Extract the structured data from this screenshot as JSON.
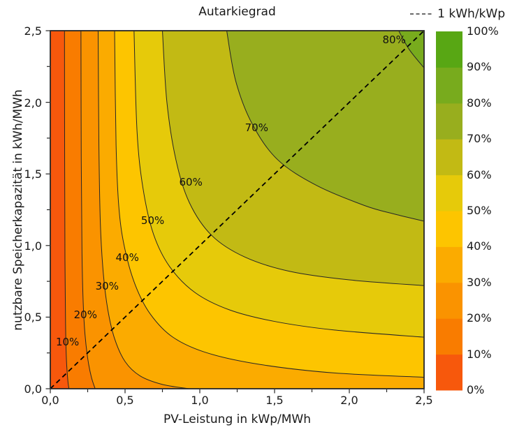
{
  "chart_data": {
    "type": "contour",
    "title": "Autarkiegrad",
    "xlabel": "PV-Leistung in kWp/MWh",
    "ylabel": "nutzbare Speicherkapazität in kWh/MWh",
    "xlim": [
      0,
      2.5
    ],
    "ylim": [
      0,
      2.5
    ],
    "grid": false,
    "xticks": {
      "values": [
        0,
        0.5,
        1.0,
        1.5,
        2.0,
        2.5
      ],
      "labels": [
        "0,0",
        "0,5",
        "1,0",
        "1,5",
        "2,0",
        "2,5"
      ],
      "minor_step": 0.25
    },
    "yticks": {
      "values": [
        0,
        0.5,
        1.0,
        1.5,
        2.0,
        2.5
      ],
      "labels": [
        "0,0",
        "0,5",
        "1,0",
        "1,5",
        "2,0",
        "2,5"
      ],
      "minor_step": 0.25
    },
    "reference_line": {
      "label": "1 kWh/kWp",
      "style": "dashed",
      "color": "#000000",
      "points": [
        [
          0,
          0
        ],
        [
          2.5,
          2.5
        ]
      ]
    },
    "band_colors": [
      {
        "range": [
          0,
          10
        ],
        "color": "#f7580c"
      },
      {
        "range": [
          10,
          20
        ],
        "color": "#f97c00"
      },
      {
        "range": [
          20,
          30
        ],
        "color": "#fa9300"
      },
      {
        "range": [
          30,
          40
        ],
        "color": "#fbab00"
      },
      {
        "range": [
          40,
          50
        ],
        "color": "#fdc500"
      },
      {
        "range": [
          50,
          60
        ],
        "color": "#e6ca0a"
      },
      {
        "range": [
          60,
          70
        ],
        "color": "#c2ba14"
      },
      {
        "range": [
          70,
          80
        ],
        "color": "#98ae1e"
      },
      {
        "range": [
          80,
          90
        ],
        "color": "#78ab1d"
      },
      {
        "range": [
          90,
          100
        ],
        "color": "#58a714"
      }
    ],
    "contours": [
      {
        "level": 10,
        "label": "10%",
        "label_pos": [
          0.115,
          0.32
        ],
        "points": [
          [
            0.095,
            2.5
          ],
          [
            0.096,
            1.6
          ],
          [
            0.098,
            0.9
          ],
          [
            0.102,
            0.45
          ],
          [
            0.108,
            0.2
          ],
          [
            0.118,
            0.05
          ],
          [
            0.125,
            0
          ]
        ]
      },
      {
        "level": 20,
        "label": "20%",
        "label_pos": [
          0.235,
          0.51
        ],
        "points": [
          [
            0.205,
            2.5
          ],
          [
            0.207,
            1.6
          ],
          [
            0.212,
            0.95
          ],
          [
            0.22,
            0.6
          ],
          [
            0.232,
            0.38
          ],
          [
            0.252,
            0.2
          ],
          [
            0.275,
            0.08
          ],
          [
            0.3,
            0
          ]
        ]
      },
      {
        "level": 30,
        "label": "30%",
        "label_pos": [
          0.38,
          0.71
        ],
        "points": [
          [
            0.32,
            2.5
          ],
          [
            0.325,
            1.7
          ],
          [
            0.335,
            1.15
          ],
          [
            0.355,
            0.8
          ],
          [
            0.385,
            0.55
          ],
          [
            0.43,
            0.35
          ],
          [
            0.5,
            0.19
          ],
          [
            0.6,
            0.09
          ],
          [
            0.75,
            0.03
          ],
          [
            0.93,
            0
          ]
        ]
      },
      {
        "level": 40,
        "label": "40%",
        "label_pos": [
          0.515,
          0.91
        ],
        "points": [
          [
            0.43,
            2.5
          ],
          [
            0.44,
            1.7
          ],
          [
            0.46,
            1.25
          ],
          [
            0.5,
            0.97
          ],
          [
            0.57,
            0.72
          ],
          [
            0.67,
            0.52
          ],
          [
            0.82,
            0.36
          ],
          [
            1.05,
            0.25
          ],
          [
            1.4,
            0.17
          ],
          [
            1.9,
            0.11
          ],
          [
            2.5,
            0.08
          ]
        ]
      },
      {
        "level": 50,
        "label": "50%",
        "label_pos": [
          0.685,
          1.17
        ],
        "points": [
          [
            0.56,
            2.5
          ],
          [
            0.58,
            1.8
          ],
          [
            0.62,
            1.4
          ],
          [
            0.69,
            1.08
          ],
          [
            0.8,
            0.85
          ],
          [
            0.97,
            0.67
          ],
          [
            1.2,
            0.55
          ],
          [
            1.5,
            0.47
          ],
          [
            1.9,
            0.41
          ],
          [
            2.5,
            0.36
          ]
        ]
      },
      {
        "level": 60,
        "label": "60%",
        "label_pos": [
          0.94,
          1.44
        ],
        "points": [
          [
            0.75,
            2.5
          ],
          [
            0.78,
            2.0
          ],
          [
            0.84,
            1.6
          ],
          [
            0.93,
            1.3
          ],
          [
            1.08,
            1.07
          ],
          [
            1.3,
            0.92
          ],
          [
            1.6,
            0.82
          ],
          [
            2.0,
            0.76
          ],
          [
            2.5,
            0.72
          ]
        ]
      },
      {
        "level": 70,
        "label": "70%",
        "label_pos": [
          1.38,
          1.82
        ],
        "points": [
          [
            1.18,
            2.5
          ],
          [
            1.24,
            2.15
          ],
          [
            1.35,
            1.85
          ],
          [
            1.52,
            1.6
          ],
          [
            1.78,
            1.42
          ],
          [
            2.1,
            1.28
          ],
          [
            2.3,
            1.22
          ],
          [
            2.5,
            1.17
          ]
        ]
      },
      {
        "level": 80,
        "label": "80%",
        "label_pos": [
          2.3,
          2.43
        ],
        "points": [
          [
            2.33,
            2.5
          ],
          [
            2.4,
            2.37
          ],
          [
            2.5,
            2.24
          ]
        ]
      }
    ],
    "colorbar": {
      "tick_labels": [
        "0%",
        "10%",
        "20%",
        "30%",
        "40%",
        "50%",
        "60%",
        "70%",
        "80%",
        "90%",
        "100%"
      ],
      "segment_colors_bottom_to_top": [
        "#f7580c",
        "#f97c00",
        "#fa9300",
        "#fbab00",
        "#fdc500",
        "#e6ca0a",
        "#c2ba14",
        "#98ae1e",
        "#78ab1d",
        "#58a714"
      ]
    }
  }
}
